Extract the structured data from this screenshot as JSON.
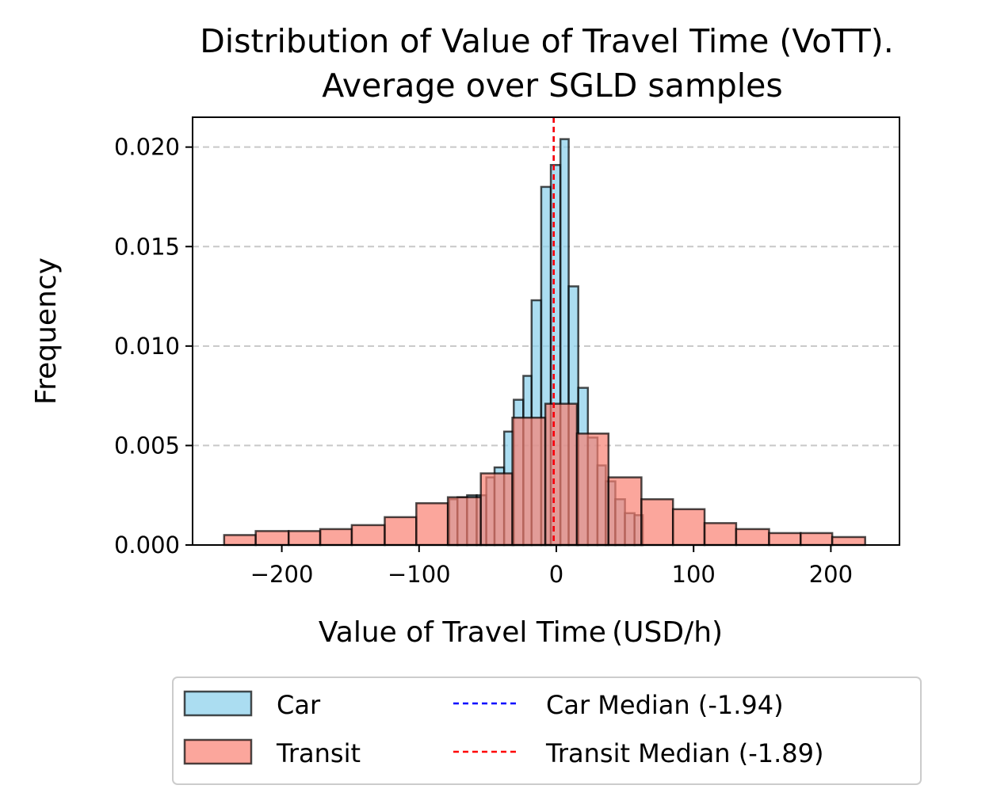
{
  "chart_data": {
    "type": "bar",
    "title_lines": [
      "Distribution of Value of Travel Time (VoTT).",
      "Average over SGLD samples"
    ],
    "xlabel": "Value of Travel Time (USD/h)",
    "ylabel": "Frequency",
    "xlim": [
      -265,
      250
    ],
    "ylim": [
      0,
      0.0215
    ],
    "xticks": [
      -200,
      -100,
      0,
      100,
      200
    ],
    "xtick_labels": [
      "−200",
      "−100",
      "0",
      "100",
      "200"
    ],
    "yticks": [
      0.0,
      0.005,
      0.01,
      0.015,
      0.02
    ],
    "ytick_labels": [
      "0.000",
      "0.005",
      "0.010",
      "0.015",
      "0.020"
    ],
    "grid": "y-dashed",
    "legend_position": "below",
    "series": [
      {
        "name": "Car",
        "color": "#87ceeb",
        "bin_edges": [
          -78,
          -72,
          -65,
          -58,
          -51,
          -45,
          -38,
          -31,
          -24,
          -18,
          -11,
          -4,
          3,
          9,
          16,
          23,
          30,
          36,
          43,
          50,
          57,
          63
        ],
        "values": [
          0.0023,
          0.0024,
          0.0025,
          0.0025,
          0.0034,
          0.0039,
          0.0057,
          0.0073,
          0.0085,
          0.0123,
          0.018,
          0.0191,
          0.0204,
          0.013,
          0.0079,
          0.0054,
          0.004,
          0.0032,
          0.0023,
          0.0016,
          0.0015
        ]
      },
      {
        "name": "Transit",
        "color": "#fa8072",
        "bin_edges": [
          -242,
          -219,
          -195,
          -172,
          -149,
          -125,
          -102,
          -79,
          -55,
          -32,
          -8,
          15,
          38,
          62,
          85,
          108,
          131,
          155,
          178,
          201,
          225
        ],
        "values": [
          0.0005,
          0.0007,
          0.0007,
          0.0008,
          0.001,
          0.0014,
          0.0021,
          0.0024,
          0.0036,
          0.0064,
          0.0071,
          0.0056,
          0.0034,
          0.0023,
          0.0018,
          0.0011,
          0.0008,
          0.0006,
          0.0006,
          0.0004
        ]
      }
    ],
    "median_lines": [
      {
        "name": "Car Median (-1.94)",
        "value": -1.94,
        "color": "#0000ff"
      },
      {
        "name": "Transit Median (-1.89)",
        "value": -1.89,
        "color": "#ff0000"
      }
    ]
  }
}
